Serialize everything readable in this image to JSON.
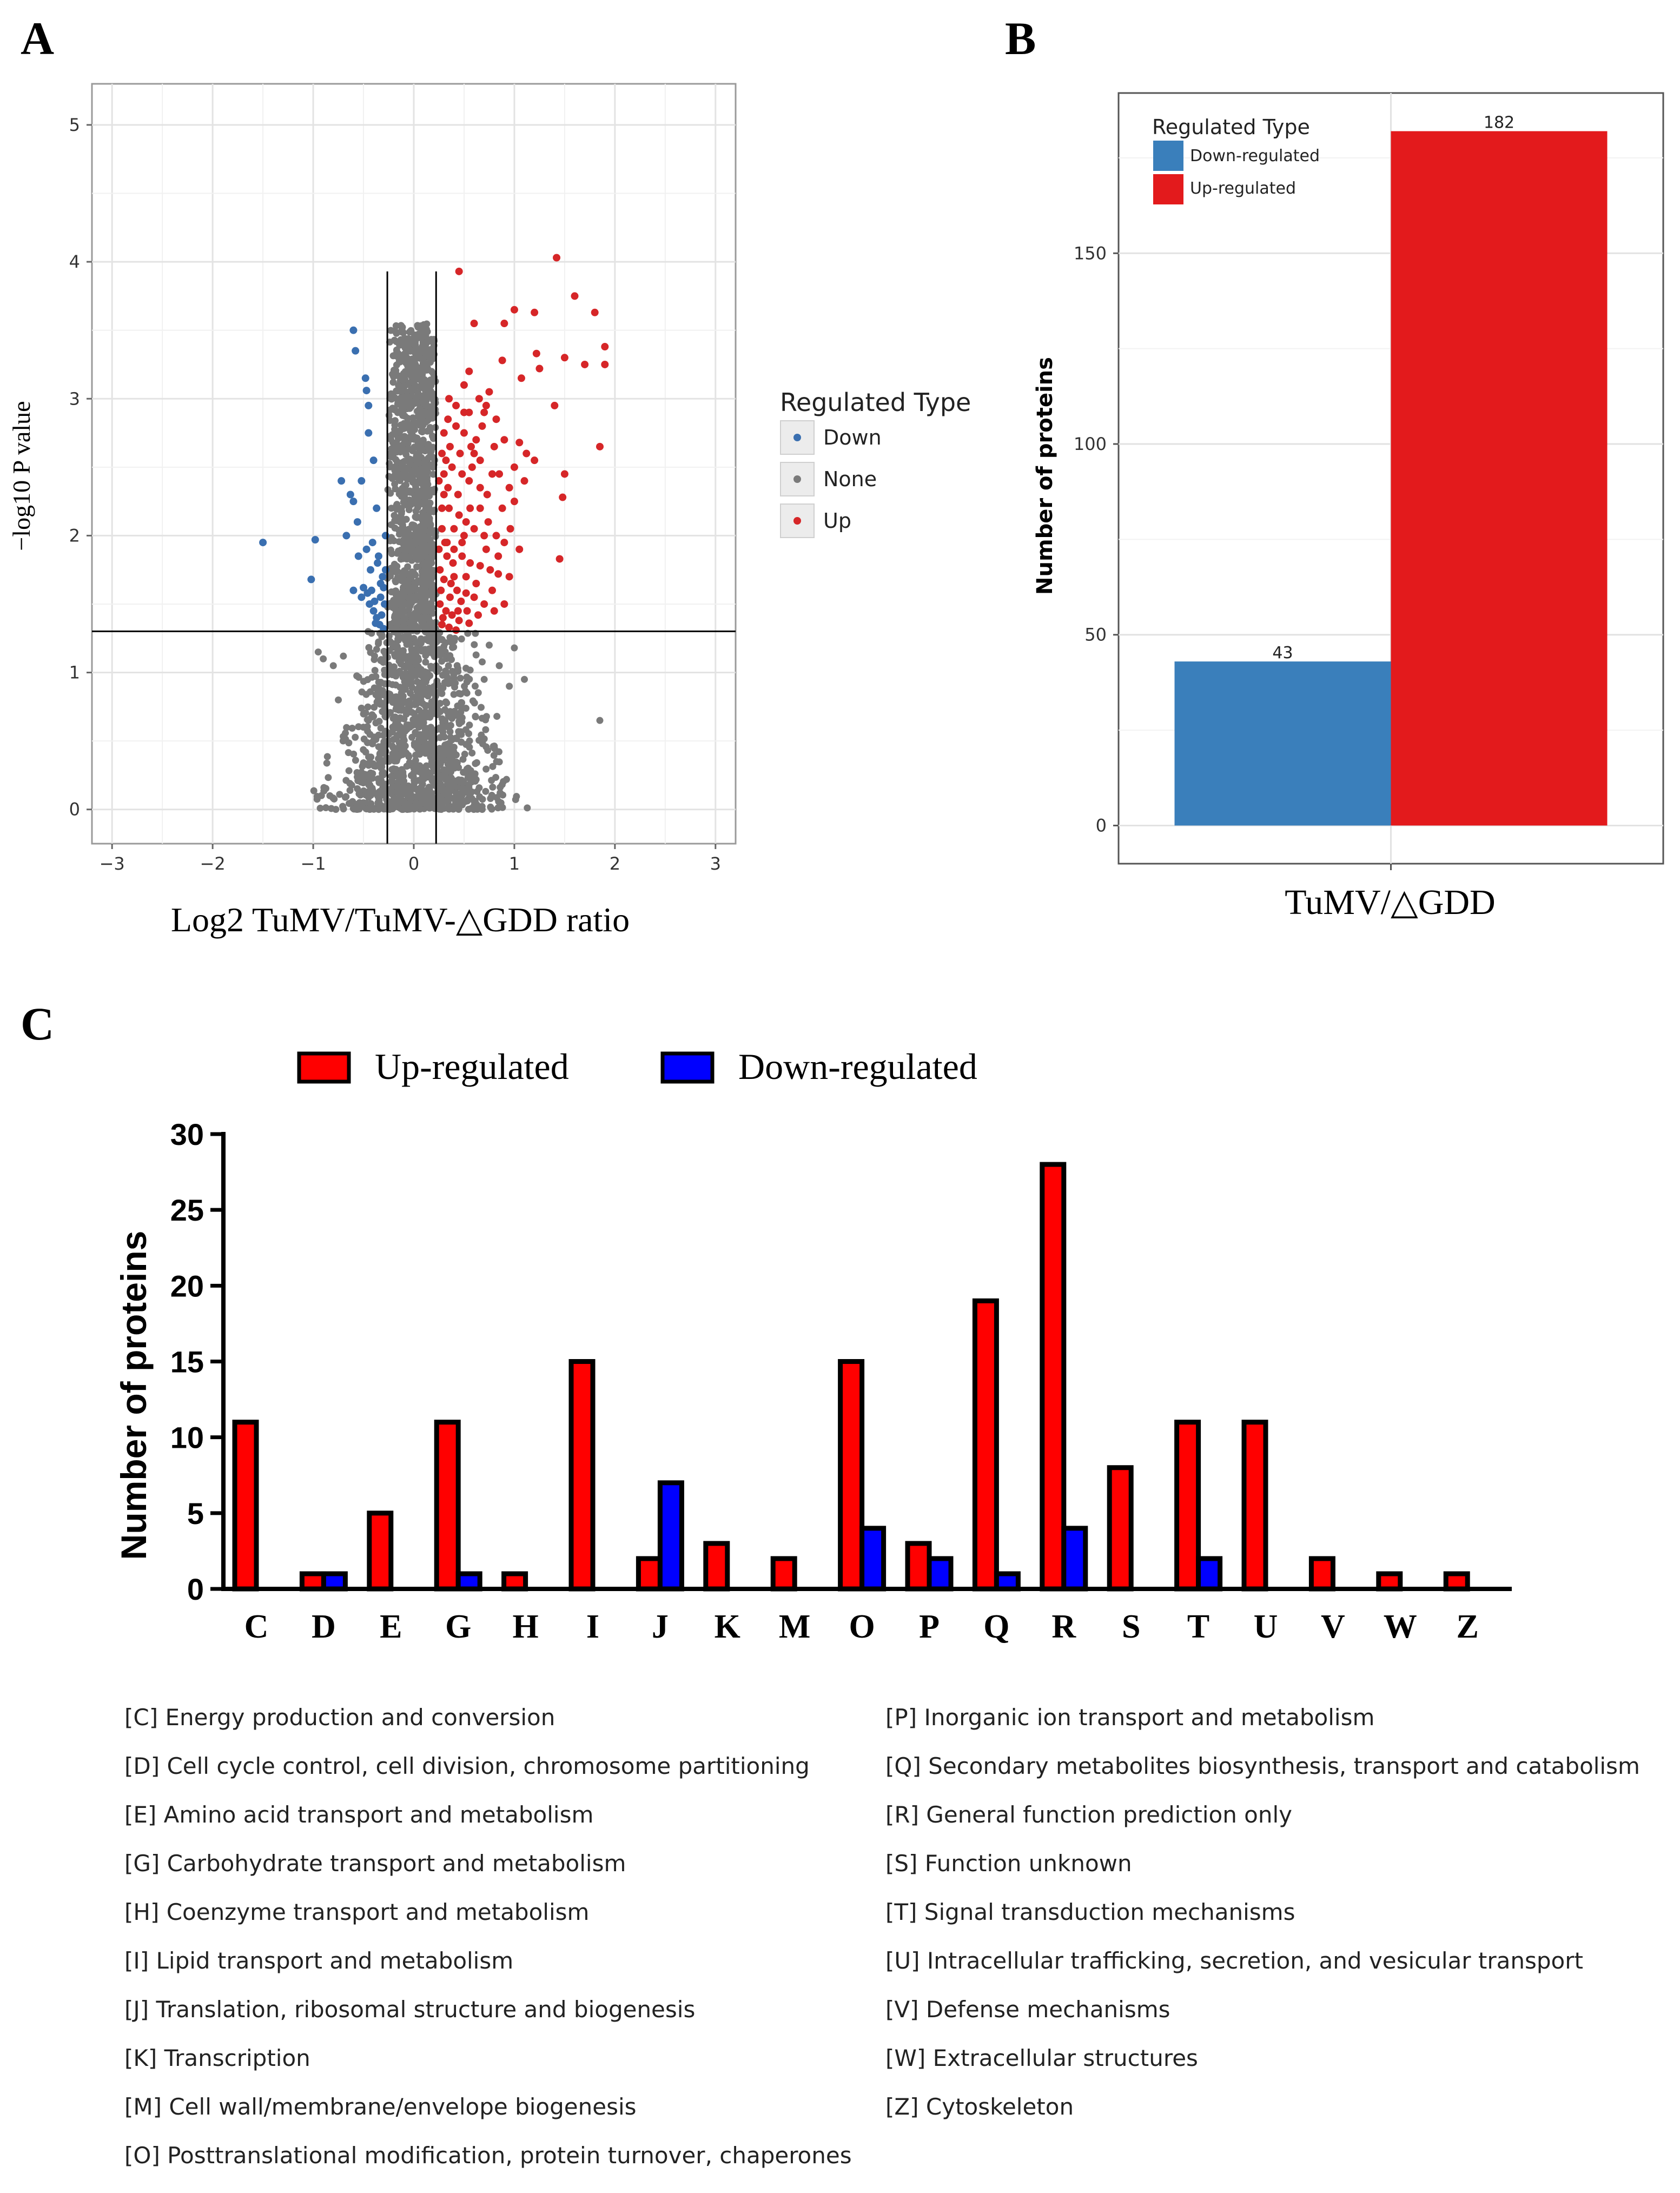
{
  "panel_letters": {
    "a": "A",
    "b": "B",
    "c": "C"
  },
  "colors": {
    "down": "#3a6fb0",
    "none": "#7a7a7a",
    "up": "#d62628",
    "bar_down_b": "#3a7fbb",
    "bar_up_b": "#e31a1c",
    "bar_up_c": "#ff0000",
    "bar_down_c": "#0000ff"
  },
  "chart_data": [
    {
      "type": "scatter",
      "title": "",
      "xlabel": "Log2 TuMV/TuMV-△GDD ratio",
      "ylabel": "−log10 P value",
      "xlim": [
        -3.2,
        3.2
      ],
      "ylim": [
        -0.25,
        5.3
      ],
      "x_ticks": [
        "−3",
        "−2",
        "−1",
        "0",
        "1",
        "2",
        "3"
      ],
      "y_ticks": [
        "0",
        "1",
        "2",
        "3",
        "4",
        "5"
      ],
      "threshold_lines": {
        "x": [
          -0.263,
          0.222
        ],
        "y": 1.301
      },
      "legend": {
        "title": "Regulated Type",
        "entries": [
          "Down",
          "None",
          "Up"
        ],
        "position": "right"
      },
      "series": [
        {
          "name": "Down",
          "points": [
            [
              -1.5,
              1.95
            ],
            [
              -0.98,
              1.97
            ],
            [
              -1.02,
              1.68
            ],
            [
              -0.6,
              3.5
            ],
            [
              -0.58,
              3.35
            ],
            [
              -0.48,
              3.15
            ],
            [
              -0.47,
              3.06
            ],
            [
              -0.45,
              2.75
            ],
            [
              -0.52,
              2.4
            ],
            [
              -0.72,
              2.4
            ],
            [
              -0.63,
              2.3
            ],
            [
              -0.6,
              2.25
            ],
            [
              -0.4,
              2.55
            ],
            [
              -0.37,
              2.2
            ],
            [
              -0.47,
              1.9
            ],
            [
              -0.55,
              1.85
            ],
            [
              -0.43,
              1.75
            ],
            [
              -0.6,
              1.6
            ],
            [
              -0.52,
              1.55
            ],
            [
              -0.44,
              1.5
            ],
            [
              -0.4,
              1.45
            ],
            [
              -0.37,
              1.4
            ],
            [
              -0.5,
              1.62
            ],
            [
              -0.36,
              1.8
            ],
            [
              -0.42,
              1.6
            ],
            [
              -0.31,
              1.7
            ],
            [
              -0.33,
              1.55
            ],
            [
              -0.34,
              1.35
            ],
            [
              -0.3,
              1.32
            ],
            [
              -0.28,
              2.0
            ],
            [
              -0.29,
              1.5
            ],
            [
              -0.32,
              1.42
            ],
            [
              -0.38,
              1.36
            ],
            [
              -0.56,
              2.1
            ],
            [
              -0.67,
              2.0
            ],
            [
              -0.45,
              2.95
            ],
            [
              -0.41,
              1.95
            ],
            [
              -0.35,
              1.85
            ],
            [
              -0.3,
              1.62
            ],
            [
              -0.28,
              1.75
            ],
            [
              -0.33,
              1.65
            ],
            [
              -0.46,
              1.58
            ],
            [
              -0.39,
              1.52
            ]
          ]
        },
        {
          "name": "Up",
          "points": [
            [
              0.45,
              3.93
            ],
            [
              1.42,
              4.03
            ],
            [
              1.0,
              3.65
            ],
            [
              1.6,
              3.75
            ],
            [
              1.2,
              3.63
            ],
            [
              1.8,
              3.63
            ],
            [
              0.6,
              3.55
            ],
            [
              1.9,
              3.38
            ],
            [
              1.5,
              3.3
            ],
            [
              0.88,
              3.28
            ],
            [
              1.07,
              3.15
            ],
            [
              1.25,
              3.22
            ],
            [
              1.9,
              3.25
            ],
            [
              1.7,
              3.25
            ],
            [
              0.9,
              3.55
            ],
            [
              1.22,
              3.33
            ],
            [
              0.75,
              3.05
            ],
            [
              1.4,
              2.95
            ],
            [
              0.55,
              2.9
            ],
            [
              0.7,
              2.9
            ],
            [
              0.34,
              2.85
            ],
            [
              0.42,
              2.8
            ],
            [
              0.5,
              2.75
            ],
            [
              0.62,
              2.7
            ],
            [
              0.8,
              2.65
            ],
            [
              0.9,
              2.7
            ],
            [
              1.05,
              2.68
            ],
            [
              1.12,
              2.6
            ],
            [
              1.2,
              2.55
            ],
            [
              1.85,
              2.65
            ],
            [
              1.5,
              2.45
            ],
            [
              0.32,
              2.55
            ],
            [
              0.38,
              2.5
            ],
            [
              0.48,
              2.45
            ],
            [
              0.55,
              2.4
            ],
            [
              0.66,
              2.35
            ],
            [
              0.73,
              2.3
            ],
            [
              0.95,
              2.35
            ],
            [
              1.0,
              2.25
            ],
            [
              0.88,
              2.2
            ],
            [
              1.48,
              2.28
            ],
            [
              0.3,
              2.3
            ],
            [
              0.35,
              2.2
            ],
            [
              0.45,
              2.15
            ],
            [
              0.52,
              2.1
            ],
            [
              0.6,
              2.05
            ],
            [
              0.7,
              2.0
            ],
            [
              0.82,
              2.0
            ],
            [
              0.9,
              1.95
            ],
            [
              1.05,
              1.9
            ],
            [
              1.45,
              1.83
            ],
            [
              0.28,
              2.05
            ],
            [
              0.33,
              1.95
            ],
            [
              0.4,
              1.9
            ],
            [
              0.48,
              1.85
            ],
            [
              0.56,
              1.8
            ],
            [
              0.66,
              1.78
            ],
            [
              0.76,
              1.75
            ],
            [
              0.84,
              1.72
            ],
            [
              0.95,
              1.7
            ],
            [
              0.26,
              1.75
            ],
            [
              0.3,
              1.68
            ],
            [
              0.37,
              1.65
            ],
            [
              0.43,
              1.6
            ],
            [
              0.52,
              1.58
            ],
            [
              0.6,
              1.55
            ],
            [
              0.7,
              1.5
            ],
            [
              0.26,
              1.5
            ],
            [
              0.32,
              1.45
            ],
            [
              0.38,
              1.42
            ],
            [
              0.45,
              1.38
            ],
            [
              0.55,
              1.36
            ],
            [
              0.28,
              1.35
            ],
            [
              0.35,
              1.33
            ],
            [
              0.42,
              1.31
            ],
            [
              0.6,
              2.6
            ],
            [
              0.66,
              2.2
            ],
            [
              0.72,
              1.9
            ],
            [
              0.78,
              1.6
            ],
            [
              0.5,
              2.0
            ],
            [
              0.44,
              2.3
            ],
            [
              0.36,
              2.65
            ],
            [
              0.3,
              2.45
            ],
            [
              0.4,
              1.7
            ],
            [
              0.47,
              1.52
            ],
            [
              0.53,
              1.45
            ],
            [
              0.64,
              1.42
            ],
            [
              0.8,
              1.45
            ],
            [
              0.9,
              1.5
            ],
            [
              0.58,
              2.5
            ],
            [
              0.85,
              2.45
            ],
            [
              0.68,
              2.8
            ],
            [
              0.46,
              2.6
            ],
            [
              0.34,
              2.35
            ],
            [
              0.28,
              2.2
            ],
            [
              0.5,
              2.9
            ],
            [
              0.56,
              2.2
            ],
            [
              0.74,
              2.1
            ],
            [
              0.62,
              1.65
            ],
            [
              0.84,
              1.85
            ],
            [
              0.96,
              2.05
            ],
            [
              0.4,
              2.05
            ],
            [
              0.36,
              1.55
            ],
            [
              0.31,
              1.95
            ],
            [
              0.27,
              1.6
            ],
            [
              0.44,
              1.45
            ],
            [
              0.52,
              1.7
            ],
            [
              1.0,
              2.5
            ],
            [
              1.1,
              2.4
            ],
            [
              0.78,
              2.45
            ],
            [
              0.66,
              2.55
            ],
            [
              0.57,
              2.65
            ],
            [
              0.48,
              1.95
            ],
            [
              0.39,
              1.8
            ],
            [
              0.33,
              1.85
            ],
            [
              0.29,
              1.4
            ],
            [
              0.25,
              1.9
            ],
            [
              0.25,
              2.4
            ],
            [
              0.28,
              2.6
            ],
            [
              0.3,
              2.75
            ],
            [
              0.35,
              3.0
            ],
            [
              0.42,
              2.95
            ],
            [
              0.5,
              3.1
            ],
            [
              0.55,
              3.2
            ],
            [
              0.65,
              3.0
            ],
            [
              0.72,
              2.95
            ],
            [
              0.82,
              2.85
            ]
          ]
        }
      ]
    },
    {
      "type": "bar",
      "title": "",
      "categories": [
        "TuMV/△GDD"
      ],
      "series": [
        {
          "name": "Down-regulated",
          "values": [
            43
          ]
        },
        {
          "name": "Up-regulated",
          "values": [
            182
          ]
        }
      ],
      "data_labels": [
        "43",
        "182"
      ],
      "xlabel": "TuMV/△GDD",
      "ylabel": "Number of proteins",
      "ylim": [
        -10,
        192
      ],
      "y_ticks": [
        "0",
        "50",
        "100",
        "150"
      ],
      "legend": {
        "title": "Regulated Type",
        "entries": [
          "Down-regulated",
          "Up-regulated"
        ],
        "position": "top-left"
      }
    },
    {
      "type": "bar",
      "title": "",
      "categories": [
        "C",
        "D",
        "E",
        "G",
        "H",
        "I",
        "J",
        "K",
        "M",
        "O",
        "P",
        "Q",
        "R",
        "S",
        "T",
        "U",
        "V",
        "W",
        "Z"
      ],
      "series": [
        {
          "name": "Up-regulated",
          "values": [
            11,
            1,
            5,
            11,
            1,
            15,
            2,
            3,
            2,
            15,
            3,
            19,
            28,
            8,
            11,
            11,
            2,
            1,
            1
          ]
        },
        {
          "name": "Down-regulated",
          "values": [
            0,
            1,
            0,
            1,
            0,
            0,
            7,
            0,
            0,
            4,
            2,
            1,
            4,
            0,
            2,
            0,
            0,
            0,
            0
          ]
        }
      ],
      "xlabel": "",
      "ylabel": "Number of proteins",
      "ylim": [
        0,
        30
      ],
      "y_ticks": [
        "0",
        "5",
        "10",
        "15",
        "20",
        "25",
        "30"
      ],
      "legend": {
        "entries": [
          "Up-regulated",
          "Down-regulated"
        ],
        "position": "top"
      }
    }
  ],
  "cog_legend": {
    "left": [
      "[C] Energy production and conversion",
      "[D] Cell cycle control, cell division, chromosome partitioning",
      "[E] Amino acid transport and metabolism",
      "[G] Carbohydrate transport and metabolism",
      "[H] Coenzyme transport and metabolism",
      "[I] Lipid transport and metabolism",
      "[J] Translation, ribosomal structure and biogenesis",
      "[K] Transcription",
      "[M] Cell wall/membrane/envelope biogenesis",
      "[O] Posttranslational modification, protein turnover, chaperones"
    ],
    "right": [
      "[P] Inorganic ion transport and metabolism",
      "[Q] Secondary metabolites biosynthesis, transport and catabolism",
      "[R] General function prediction only",
      "[S] Function unknown",
      "[T] Signal transduction mechanisms",
      "[U] Intracellular trafficking, secretion, and vesicular transport",
      "[V] Defense mechanisms",
      "[W] Extracellular structures",
      "[Z] Cytoskeleton"
    ]
  }
}
